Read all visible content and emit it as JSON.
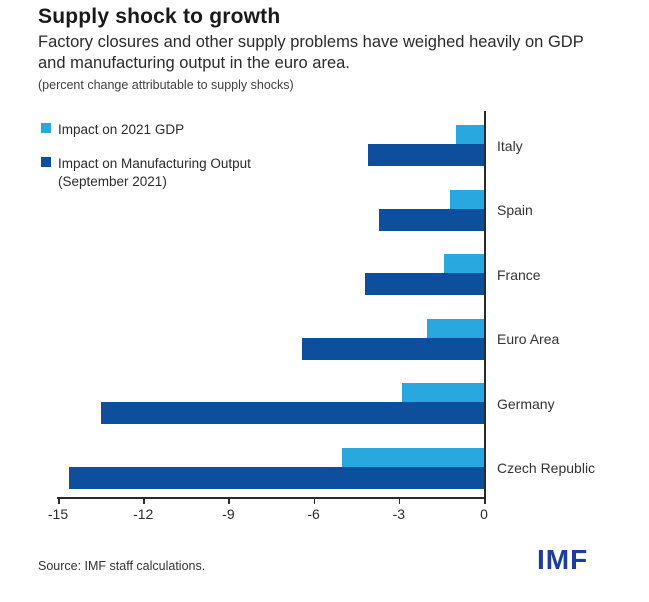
{
  "header": {
    "title": "Supply shock to growth",
    "subtitle": "Factory closures and other supply problems have weighed heavily on GDP and manufacturing output in the euro area.",
    "note": "(percent change attributable to supply shocks)"
  },
  "legend": {
    "items": [
      {
        "label": "Impact on 2021 GDP",
        "color": "#29a8e0"
      },
      {
        "label": "Impact on Manufacturing Output",
        "label2": "(September 2021)",
        "color": "#0d4f9c"
      }
    ]
  },
  "chart_data": {
    "type": "bar",
    "orientation": "horizontal",
    "title": "Supply shock to growth",
    "unit_note": "percent change attributable to supply shocks",
    "categories": [
      "Italy",
      "Spain",
      "France",
      "Euro Area",
      "Germany",
      "Czech Republic"
    ],
    "series": [
      {
        "name": "Impact on 2021 GDP",
        "color": "#29a8e0",
        "values": [
          -1.0,
          -1.2,
          -1.4,
          -2.0,
          -2.9,
          -5.0
        ]
      },
      {
        "name": "Impact on Manufacturing Output (September 2021)",
        "color": "#0d4f9c",
        "values": [
          -4.1,
          -3.7,
          -4.2,
          -6.4,
          -13.5,
          -14.6
        ]
      }
    ],
    "xlim": [
      -15,
      0
    ],
    "xticks": [
      -15,
      -12,
      -9,
      -6,
      -3,
      0
    ],
    "grid": false,
    "legend_position": "top-left"
  },
  "footer": {
    "source": "Source: IMF staff calculations.",
    "logo": "IMF"
  },
  "colors": {
    "gdp_bar": "#29a8e0",
    "manufacturing_bar": "#0d4f9c",
    "logo_blue": "#1d3d99",
    "axis": "#2b2b2b"
  }
}
